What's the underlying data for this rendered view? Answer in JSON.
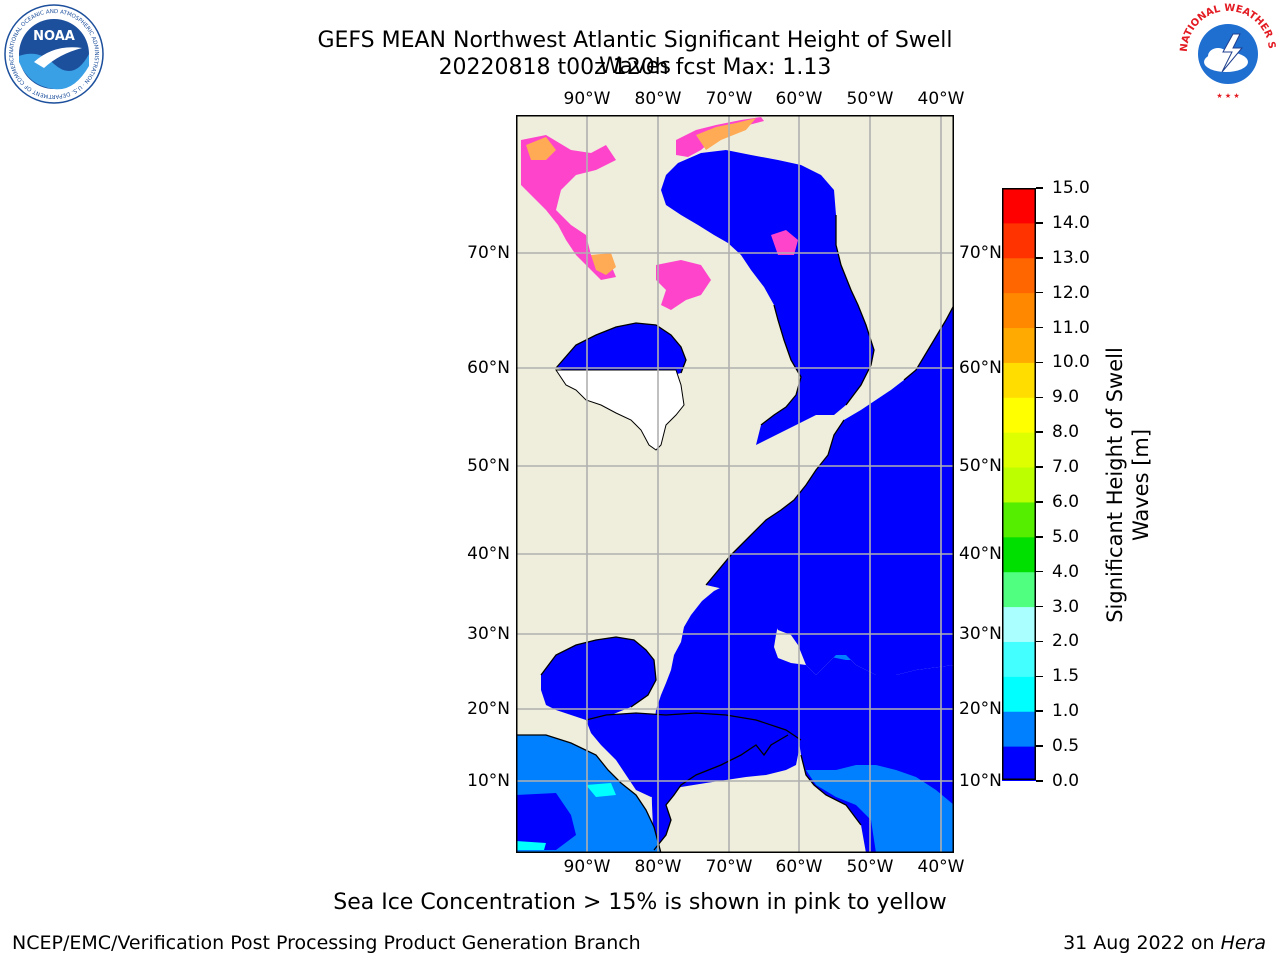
{
  "header": {
    "title_line1": "GEFS MEAN Northwest Atlantic Significant Height of Swell Waves",
    "title_line2": "20220818 t00z 120h fcst   Max: 1.13"
  },
  "logos": {
    "left": {
      "text": "NOAA",
      "ring_text": "NATIONAL OCEANIC AND ATMOSPHERIC ADMINISTRATION · U.S. DEPARTMENT OF COMMERCE",
      "color": "#1c4f9c"
    },
    "right": {
      "ring_text": "NATIONAL WEATHER SERVICE",
      "color": "#e31b23"
    }
  },
  "map": {
    "lon_labels": [
      "90°W",
      "80°W",
      "70°W",
      "60°W",
      "50°W",
      "40°W"
    ],
    "lat_labels": [
      "70°N",
      "60°N",
      "50°N",
      "40°N",
      "30°N",
      "20°N",
      "10°N"
    ],
    "colors": {
      "land": "#efeedc",
      "sea_low": "#0000ff",
      "sea_mid": "#0080ff",
      "sea_high": "#00ffff",
      "no_data": "#ffffff",
      "ice": "#ff44cc",
      "ice_edge": "#ffaa55",
      "grid": "#b0b0b0"
    }
  },
  "colorbar": {
    "label_line1": "Significant Height of Swell",
    "label_line2": "Waves [m]",
    "ticks": [
      "0.0",
      "0.5",
      "1.0",
      "1.5",
      "2.0",
      "3.0",
      "4.0",
      "5.0",
      "6.0",
      "7.0",
      "8.0",
      "9.0",
      "10.0",
      "11.0",
      "12.0",
      "13.0",
      "14.0",
      "15.0"
    ],
    "colors": [
      "#0000ff",
      "#0080ff",
      "#00ffff",
      "#44ffff",
      "#aaffff",
      "#50ff80",
      "#00e000",
      "#55ee00",
      "#bbff00",
      "#ddff00",
      "#ffff00",
      "#ffdd00",
      "#ffaa00",
      "#ff8800",
      "#ff6600",
      "#ff3300",
      "#ff0000"
    ]
  },
  "notes": {
    "ice_note": "Sea Ice Concentration > 15% is shown in pink to yellow"
  },
  "footer": {
    "left": "NCEP/EMC/Verification Post Processing Product Generation Branch",
    "right_date": "31 Aug 2022 on ",
    "right_host": "Hera"
  }
}
